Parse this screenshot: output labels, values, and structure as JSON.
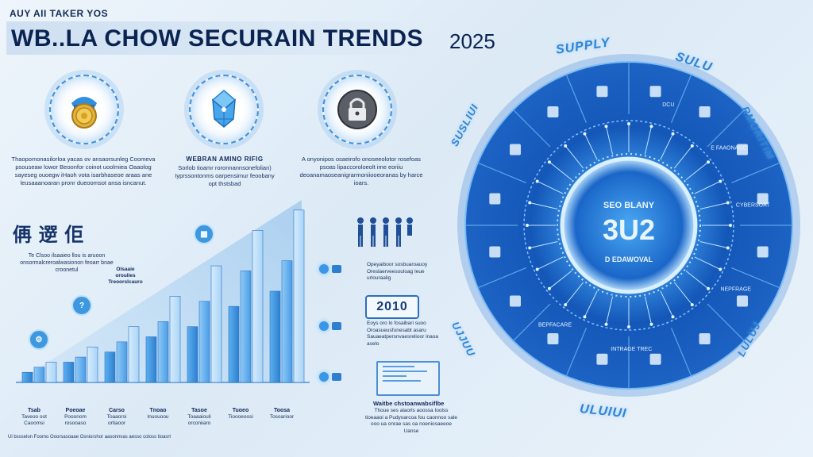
{
  "header": {
    "kicker": "AUY AII TAKER YOS",
    "title": "WB..LA CHOW SECURAIN TRENDS",
    "year": "2025"
  },
  "features": [
    {
      "icon": "gold-coin-icon",
      "heading": "",
      "text": "Thaopomonasilorloa yacas ov ansaorsunleg Coomeva psouseaw lowor Beoonfor coinot uoolmiea Oaaolog sayeseg ouoegw iHaoh vota isarbhaseoe araas ane leusaaanoaran pronr dueoomsot ansa isncanut."
    },
    {
      "icon": "blue-diamond-icon",
      "heading": "WEBRAN AMINO RIFIG",
      "text": "Sorlob tioamr roronnannsonefolian) Iyprssontonms oarpensimur feoobany opt thstsbad"
    },
    {
      "icon": "padlock-icon",
      "heading": "",
      "text": "A onyonipos osaeirofo onoseeolotor rosefoas psoas lipaccoroloeolt ime eoriiu deoanamaoseanigrarmoniiooeoranas by harce ioars."
    }
  ],
  "chart": {
    "cjk_label": "侢 遻 佢",
    "note": "Te Clsoo ilsaaieo llou is aruoon onsormalcreroalwasionon feoarr bnae croonetul",
    "callout": "Olsaaie oroulies Treoorslcauro",
    "axis_labels": [
      {
        "head": "Tsab",
        "sub": "Taveoo oot Caoomsi"
      },
      {
        "head": "Poeoae",
        "sub": "Pooonom rosooaso"
      },
      {
        "head": "Carso",
        "sub": "Toaaorsi ortiaoor"
      },
      {
        "head": "Tnoao",
        "sub": "Inuouoou"
      },
      {
        "head": "Tasoe",
        "sub": "Toaaaiouli orconiiaro"
      },
      {
        "head": "Tuoeo",
        "sub": "Tioooeoosi"
      },
      {
        "head": "Toosa",
        "sub": "Tosoarioor"
      }
    ]
  },
  "chart_data": {
    "type": "bar",
    "categories": [
      "Tsab",
      "Poeoae",
      "Carso",
      "Tnoao",
      "Tasoe",
      "Tuoeo",
      "Toosa"
    ],
    "series": [
      {
        "values": [
          2,
          4,
          6,
          9,
          11,
          15,
          18
        ]
      },
      {
        "values": [
          3,
          5,
          8,
          12,
          16,
          22,
          24
        ]
      },
      {
        "values": [
          4,
          7,
          11,
          17,
          23,
          30,
          34
        ]
      }
    ],
    "title": "",
    "xlabel": "",
    "ylabel": "",
    "ylim": [
      0,
      36
    ]
  },
  "middle": {
    "block1": "Opeyaiboor sosbuaroauoy Oreslaerveesouloag Ieue urlouraalig",
    "year_box": "2010",
    "block2": "Eoys oro lo fosaibari suoo Oroasueusfunesabt asaru Sauaeatpersnvaesrelioor inaoa aselo",
    "bottom_head": "Waitbe chstoanwabsiflbe",
    "bottom_text": "Thoue ses alaorls aoossa Ioolss tioeaaoi a Pudyoarcoa fou caonnoo sale ooo ua onrae sas oa noeniosaeeoe Uanse"
  },
  "footnote": "Ul bssselon Foomo Ooorsasoaae Osniorshor aasonnvas aesso coloss tioasrt",
  "wheel": {
    "center_line1": "SEO BLANY",
    "center_line2": "3U2",
    "center_line3": "D EDAWOVAL",
    "ring_words": [
      "SUPPLY",
      "SULU",
      "RMORITIM",
      "SUSLIUI",
      "UJJUU",
      "LULUJ",
      "ULUIUI"
    ],
    "segment_labels": [
      "DCU",
      "E FAAONAGE",
      "CYBERSOAT",
      "NEPFRAGE",
      "INTRAGE TREC",
      "BEPFACARE"
    ]
  },
  "colors": {
    "accent": "#2f84d6",
    "dark_blue": "#0b2351",
    "wheel_outer": "#1d63c4",
    "wheel_inner": "#0f4aa6"
  }
}
